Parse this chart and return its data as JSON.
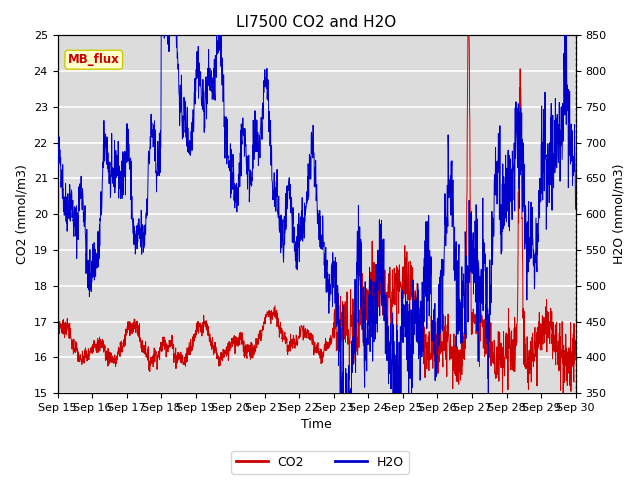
{
  "title": "LI7500 CO2 and H2O",
  "xlabel": "Time",
  "ylabel_left": "CO2 (mmol/m3)",
  "ylabel_right": "H2O (mmol/m3)",
  "co2_ylim": [
    15.0,
    25.0
  ],
  "h2o_ylim": [
    350,
    850
  ],
  "xtick_labels": [
    "Sep 15",
    "Sep 16",
    "Sep 17",
    "Sep 18",
    "Sep 19",
    "Sep 20",
    "Sep 21",
    "Sep 22",
    "Sep 23",
    "Sep 24",
    "Sep 25",
    "Sep 26",
    "Sep 27",
    "Sep 28",
    "Sep 29",
    "Sep 30"
  ],
  "co2_color": "#cc0000",
  "h2o_color": "#0000cc",
  "bg_color": "#dcdcdc",
  "annotation_text": "MB_flux",
  "annotation_bg": "#ffffcc",
  "annotation_border": "#cccc00",
  "annotation_fg": "#cc0000",
  "legend_co2": "CO2",
  "legend_h2o": "H2O",
  "title_fontsize": 11,
  "axis_fontsize": 9,
  "tick_fontsize": 8
}
